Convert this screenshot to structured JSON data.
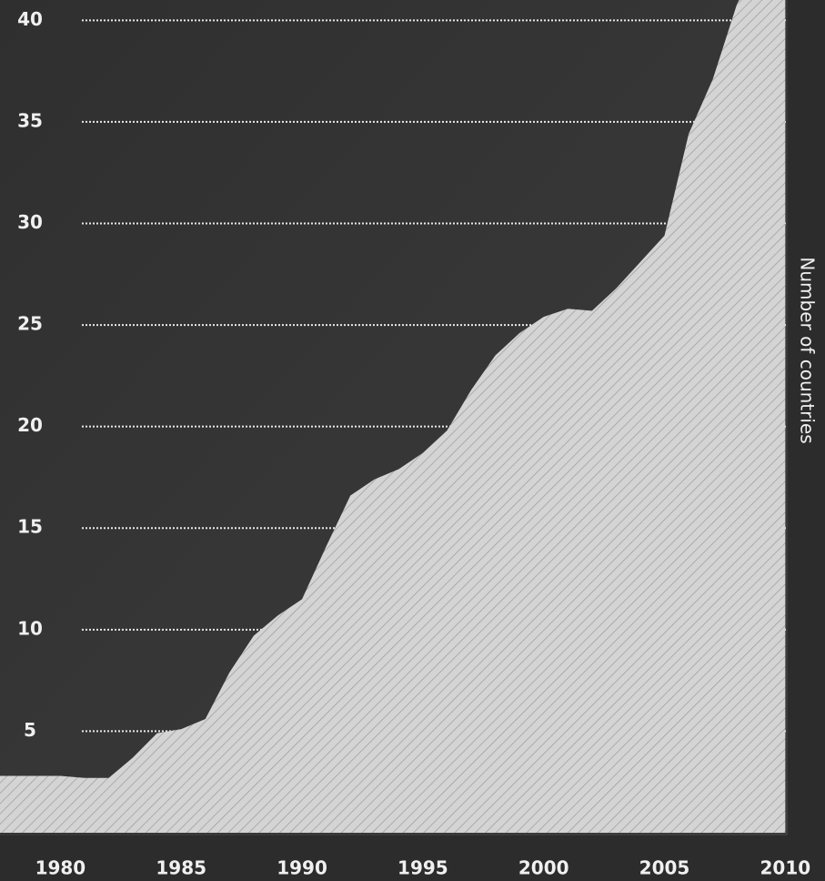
{
  "chart_data": {
    "type": "area",
    "ylabel": "Number of countries",
    "x": [
      1977,
      1978,
      1979,
      1980,
      1981,
      1982,
      1983,
      1984,
      1985,
      1986,
      1987,
      1988,
      1989,
      1990,
      1991,
      1992,
      1993,
      1994,
      1995,
      1996,
      1997,
      1998,
      1999,
      2000,
      2001,
      2002,
      2003,
      2004,
      2005,
      2006,
      2007,
      2008,
      2009,
      2010
    ],
    "values": [
      2.8,
      2.8,
      2.8,
      2.8,
      2.7,
      2.7,
      3.7,
      4.9,
      5.1,
      5.6,
      7.9,
      9.7,
      10.7,
      11.5,
      14.1,
      16.6,
      17.4,
      17.9,
      18.7,
      19.8,
      21.8,
      23.5,
      24.6,
      25.4,
      25.8,
      25.7,
      26.8,
      28.1,
      29.4,
      34.4,
      37.1,
      40.8,
      43,
      45
    ],
    "color": "#d2d2d2",
    "xlim": [
      1977.5,
      2010.1
    ],
    "xticks": [
      1980,
      1985,
      1990,
      1995,
      2000,
      2005,
      2010
    ],
    "ylim": [
      0,
      41
    ],
    "yticks": [
      5,
      10,
      15,
      20,
      25,
      30,
      35,
      40
    ],
    "grid": true
  }
}
